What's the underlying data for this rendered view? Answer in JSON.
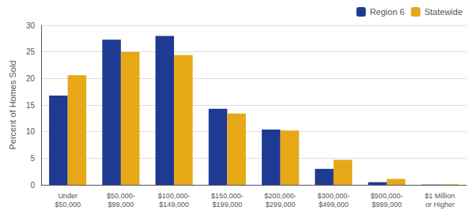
{
  "chart_data": {
    "type": "bar",
    "ylabel": "Percent of Homes Sold",
    "categories": [
      "Under\n$50,000",
      "$50,000-\n$99,000",
      "$100,000-\n$149,000",
      "$150,000-\n$199,000",
      "$200,000-\n$299,000",
      "$300,000-\n$499,000",
      "$500,000-\n$999,000",
      "$1 Million\nor Higher"
    ],
    "series": [
      {
        "name": "Region 6",
        "color": "#1F3A93",
        "values": [
          16.8,
          27.3,
          28.0,
          14.3,
          10.4,
          3.0,
          0.5,
          0.05
        ]
      },
      {
        "name": "Statewide",
        "color": "#E6A817",
        "values": [
          20.6,
          25.0,
          24.4,
          13.4,
          10.2,
          4.7,
          1.1,
          0.1
        ]
      }
    ],
    "ylim": [
      0,
      30
    ],
    "yticks": [
      0,
      5,
      10,
      15,
      20,
      25,
      30
    ],
    "grid": true,
    "legend": "upper right"
  }
}
